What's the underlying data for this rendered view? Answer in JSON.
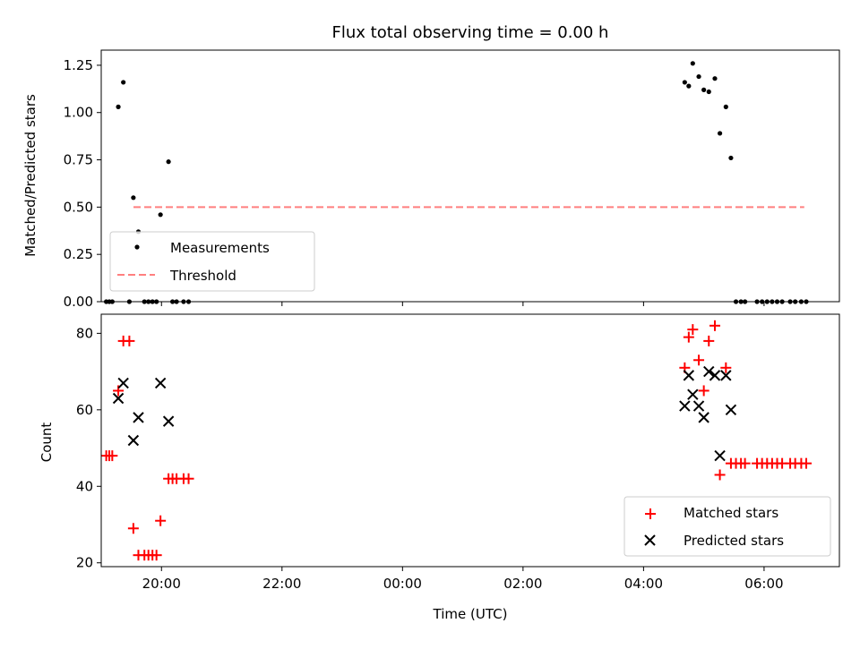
{
  "chart_data": [
    {
      "type": "scatter",
      "title": "Flux total observing time = 0.00 h",
      "xlabel": "",
      "ylabel": "Matched/Predicted stars",
      "xlim": [
        "19:00",
        "07:15"
      ],
      "ylim": [
        0,
        1.33
      ],
      "x_ticks": [
        "20:00",
        "22:00",
        "00:00",
        "02:00",
        "04:00",
        "06:00"
      ],
      "y_ticks": [
        "0.00",
        "0.25",
        "0.50",
        "0.75",
        "1.00",
        "1.25"
      ],
      "y_tick_values": [
        0,
        0.25,
        0.5,
        0.75,
        1.0,
        1.25
      ],
      "legend": {
        "position": "lower-left",
        "entries": [
          "Measurements",
          "Threshold"
        ]
      },
      "series": [
        {
          "name": "Measurements",
          "marker": "dot",
          "color": "#000000",
          "points": [
            [
              "19:05",
              0
            ],
            [
              "19:08",
              0
            ],
            [
              "19:11",
              0
            ],
            [
              "19:17",
              1.03
            ],
            [
              "19:22",
              1.16
            ],
            [
              "19:28",
              0
            ],
            [
              "19:32",
              0.55
            ],
            [
              "19:37",
              0.37
            ],
            [
              "19:43",
              0
            ],
            [
              "19:47",
              0
            ],
            [
              "19:51",
              0
            ],
            [
              "19:55",
              0
            ],
            [
              "19:59",
              0.46
            ],
            [
              "20:07",
              0.74
            ],
            [
              "20:11",
              0
            ],
            [
              "20:15",
              0
            ],
            [
              "20:22",
              0
            ],
            [
              "20:27",
              0
            ],
            [
              "04:41",
              1.16
            ],
            [
              "04:45",
              1.14
            ],
            [
              "04:49",
              1.26
            ],
            [
              "04:55",
              1.19
            ],
            [
              "05:00",
              1.12
            ],
            [
              "05:05",
              1.11
            ],
            [
              "05:11",
              1.18
            ],
            [
              "05:16",
              0.89
            ],
            [
              "05:22",
              1.03
            ],
            [
              "05:27",
              0.76
            ],
            [
              "05:32",
              0
            ],
            [
              "05:37",
              0
            ],
            [
              "05:41",
              0
            ],
            [
              "05:53",
              0
            ],
            [
              "05:58",
              0
            ],
            [
              "06:03",
              0
            ],
            [
              "06:08",
              0
            ],
            [
              "06:13",
              0
            ],
            [
              "06:18",
              0
            ],
            [
              "06:26",
              0
            ],
            [
              "06:31",
              0
            ],
            [
              "06:37",
              0
            ],
            [
              "06:42",
              0
            ]
          ]
        },
        {
          "name": "Threshold",
          "marker": "dashed-line",
          "color": "#ff7f7f",
          "points": [
            [
              "19:00",
              0.5
            ],
            [
              "06:40",
              0.5
            ]
          ]
        }
      ]
    },
    {
      "type": "scatter",
      "title": "",
      "xlabel": "Time (UTC)",
      "ylabel": "Count",
      "xlim": [
        "19:00",
        "07:15"
      ],
      "ylim": [
        19,
        85
      ],
      "x_ticks": [
        "20:00",
        "22:00",
        "00:00",
        "02:00",
        "04:00",
        "06:00"
      ],
      "y_ticks": [
        "20",
        "40",
        "60",
        "80"
      ],
      "y_tick_values": [
        20,
        40,
        60,
        80
      ],
      "legend": {
        "position": "lower-right",
        "entries": [
          "Matched stars",
          "Predicted stars"
        ]
      },
      "series": [
        {
          "name": "Matched stars",
          "marker": "plus",
          "color": "#ff0000",
          "points": [
            [
              "19:05",
              48
            ],
            [
              "19:08",
              48
            ],
            [
              "19:11",
              48
            ],
            [
              "19:17",
              65
            ],
            [
              "19:22",
              78
            ],
            [
              "19:28",
              78
            ],
            [
              "19:32",
              29
            ],
            [
              "19:37",
              22
            ],
            [
              "19:43",
              22
            ],
            [
              "19:47",
              22
            ],
            [
              "19:51",
              22
            ],
            [
              "19:55",
              22
            ],
            [
              "19:59",
              31
            ],
            [
              "20:07",
              42
            ],
            [
              "20:11",
              42
            ],
            [
              "20:15",
              42
            ],
            [
              "20:22",
              42
            ],
            [
              "20:27",
              42
            ],
            [
              "04:41",
              71
            ],
            [
              "04:45",
              79
            ],
            [
              "04:49",
              81
            ],
            [
              "04:55",
              73
            ],
            [
              "05:00",
              65
            ],
            [
              "05:05",
              78
            ],
            [
              "05:11",
              82
            ],
            [
              "05:16",
              43
            ],
            [
              "05:22",
              71
            ],
            [
              "05:27",
              46
            ],
            [
              "05:32",
              46
            ],
            [
              "05:37",
              46
            ],
            [
              "05:41",
              46
            ],
            [
              "05:53",
              46
            ],
            [
              "05:58",
              46
            ],
            [
              "06:03",
              46
            ],
            [
              "06:08",
              46
            ],
            [
              "06:13",
              46
            ],
            [
              "06:18",
              46
            ],
            [
              "06:26",
              46
            ],
            [
              "06:31",
              46
            ],
            [
              "06:37",
              46
            ],
            [
              "06:42",
              46
            ]
          ]
        },
        {
          "name": "Predicted stars",
          "marker": "x",
          "color": "#000000",
          "points": [
            [
              "19:17",
              63
            ],
            [
              "19:22",
              67
            ],
            [
              "19:32",
              52
            ],
            [
              "19:37",
              58
            ],
            [
              "19:59",
              67
            ],
            [
              "20:07",
              57
            ],
            [
              "04:41",
              61
            ],
            [
              "04:45",
              69
            ],
            [
              "04:49",
              64
            ],
            [
              "04:55",
              61
            ],
            [
              "05:00",
              58
            ],
            [
              "05:05",
              70
            ],
            [
              "05:11",
              69
            ],
            [
              "05:16",
              48
            ],
            [
              "05:22",
              69
            ],
            [
              "05:27",
              60
            ]
          ]
        }
      ]
    }
  ]
}
